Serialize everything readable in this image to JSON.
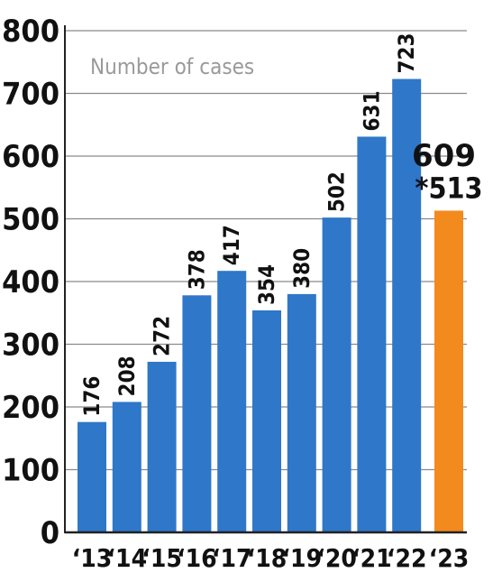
{
  "chart_data": {
    "type": "bar",
    "title": "",
    "xlabel": "",
    "ylabel": "",
    "annotation": "Number of cases",
    "categories": [
      "‘13",
      "‘14",
      "‘15",
      "‘16",
      "‘17",
      "‘18",
      "‘19",
      "‘20",
      "‘21",
      "‘22",
      "‘23"
    ],
    "values": [
      176,
      208,
      272,
      378,
      417,
      354,
      380,
      502,
      631,
      723,
      513
    ],
    "value_labels": [
      "176",
      "208",
      "272",
      "378",
      "417",
      "354",
      "380",
      "502",
      "631",
      "723",
      "*513"
    ],
    "extra_label": "609",
    "ylim": [
      0,
      800
    ],
    "yticks": [
      0,
      100,
      200,
      300,
      400,
      500,
      600,
      700,
      800
    ],
    "ytick_labels": [
      "0",
      "100",
      "200",
      "300",
      "400",
      "500",
      "600",
      "700",
      "800"
    ],
    "grid": true,
    "colors": {
      "bar": "#2f77c8",
      "highlight": "#f28a1e",
      "grid": "#8a8a8a",
      "axis": "#222222"
    },
    "highlight_index": 10
  }
}
